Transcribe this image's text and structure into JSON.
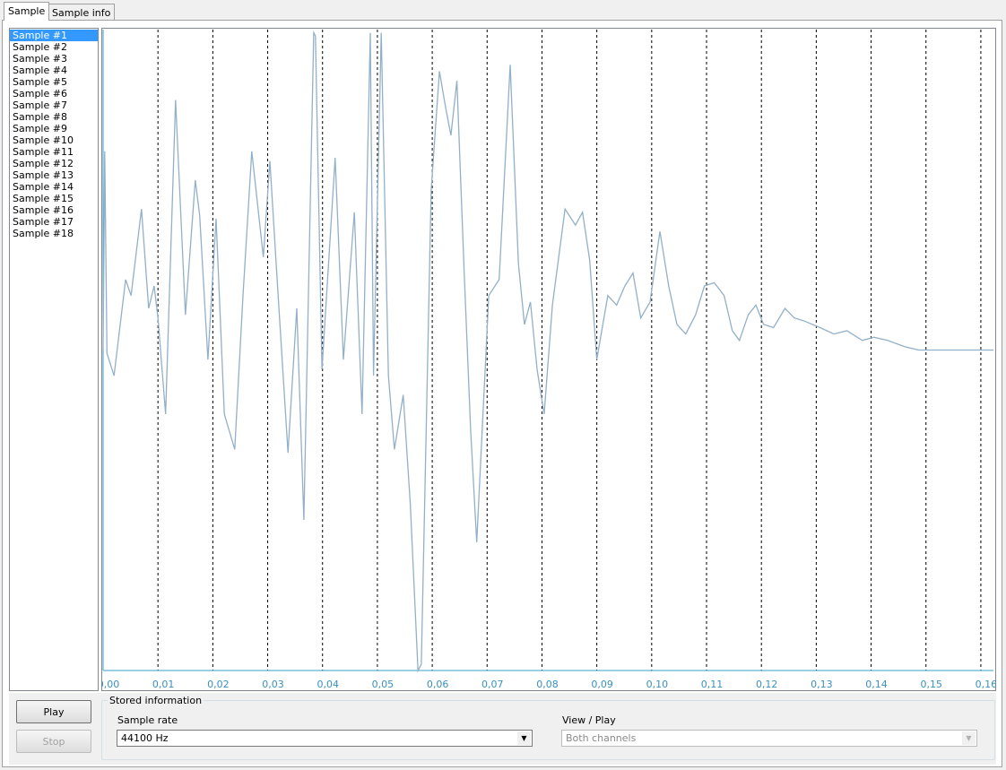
{
  "tabs": [
    "Sample",
    "Sample info"
  ],
  "samples": [
    "Sample #1",
    "Sample #2",
    "Sample #3",
    "Sample #4",
    "Sample #5",
    "Sample #6",
    "Sample #7",
    "Sample #8",
    "Sample #9",
    "Sample #10",
    "Sample #11",
    "Sample #12",
    "Sample #13",
    "Sample #14",
    "Sample #15",
    "Sample #16",
    "Sample #17",
    "Sample #18"
  ],
  "chart_data": {
    "type": "line",
    "color": "#92b0c8",
    "x": [
      0,
      0.0003,
      0.0007,
      0.002,
      0.0041,
      0.0051,
      0.007,
      0.0083,
      0.0093,
      0.01,
      0.0114,
      0.0132,
      0.015,
      0.0168,
      0.0176,
      0.0191,
      0.0206,
      0.0221,
      0.024,
      0.0255,
      0.0271,
      0.0292,
      0.0304,
      0.0319,
      0.0337,
      0.0353,
      0.0366,
      0.0384,
      0.0387,
      0.0399,
      0.0423,
      0.0438,
      0.0458,
      0.0472,
      0.0487,
      0.0493,
      0.0507,
      0.052,
      0.0531,
      0.0547,
      0.056,
      0.0574,
      0.058,
      0.0598,
      0.0613,
      0.0624,
      0.0634,
      0.0645,
      0.0658,
      0.067,
      0.0681,
      0.0703,
      0.0722,
      0.0742,
      0.0757,
      0.0768,
      0.0779,
      0.0791,
      0.0804,
      0.0819,
      0.0842,
      0.0861,
      0.0874,
      0.0887,
      0.09,
      0.092,
      0.0936,
      0.0951,
      0.0966,
      0.098,
      0.0997,
      0.1015,
      0.1031,
      0.1046,
      0.1062,
      0.108,
      0.1096,
      0.1114,
      0.1132,
      0.1147,
      0.116,
      0.1176,
      0.119,
      0.1204,
      0.1222,
      0.1243,
      0.126,
      0.1279,
      0.1307,
      0.1332,
      0.1356,
      0.1384,
      0.1405,
      0.143,
      0.1462,
      0.1487,
      0.1623
    ],
    "values": [
      0,
      0.62,
      -0.01,
      -0.08,
      0.22,
      0.17,
      0.44,
      0.13,
      0.2,
      0.1,
      -0.2,
      0.78,
      0.11,
      0.53,
      0.42,
      -0.03,
      0.41,
      -0.2,
      -0.31,
      0.17,
      0.62,
      0.29,
      0.59,
      0.17,
      -0.32,
      0.13,
      -0.53,
      0.99,
      0.98,
      -0.06,
      0.6,
      -0.03,
      0.43,
      -0.2,
      0.99,
      -0.08,
      0.99,
      -0.08,
      -0.31,
      -0.14,
      -0.48,
      -1.0,
      -0.98,
      0.5,
      0.87,
      0.76,
      0.67,
      0.84,
      0.25,
      -0.25,
      -0.6,
      0.17,
      0.22,
      0.89,
      0.27,
      0.08,
      0.15,
      -0.06,
      -0.2,
      0.14,
      0.44,
      0.39,
      0.43,
      0.28,
      -0.03,
      0.17,
      0.14,
      0.2,
      0.24,
      0.1,
      0.15,
      0.37,
      0.2,
      0.08,
      0.05,
      0.11,
      0.2,
      0.21,
      0.17,
      0.06,
      0.03,
      0.11,
      0.14,
      0.08,
      0.07,
      0.13,
      0.1,
      0.09,
      0.07,
      0.05,
      0.06,
      0.03,
      0.04,
      0.03,
      0.01,
      0,
      0
    ],
    "xlim": [
      0,
      0.1623
    ],
    "ylim": [
      -1,
      1
    ],
    "xticks": [
      {
        "value": 0,
        "label": "0,00"
      },
      {
        "value": 0.01,
        "label": "0,01"
      },
      {
        "value": 0.02,
        "label": "0,02"
      },
      {
        "value": 0.03,
        "label": "0,03"
      },
      {
        "value": 0.04,
        "label": "0,04"
      },
      {
        "value": 0.05,
        "label": "0,05"
      },
      {
        "value": 0.06,
        "label": "0,06"
      },
      {
        "value": 0.07,
        "label": "0,07"
      },
      {
        "value": 0.08,
        "label": "0,08"
      },
      {
        "value": 0.09,
        "label": "0,09"
      },
      {
        "value": 0.1,
        "label": "0,10"
      },
      {
        "value": 0.11,
        "label": "0,11"
      },
      {
        "value": 0.12,
        "label": "0,12"
      },
      {
        "value": 0.13,
        "label": "0,13"
      },
      {
        "value": 0.14,
        "label": "0,14"
      },
      {
        "value": 0.15,
        "label": "0,15"
      },
      {
        "value": 0.16,
        "label": "0,16"
      }
    ],
    "grid": true
  },
  "buttons": {
    "play": "Play",
    "stop": "Stop"
  },
  "stored_information": {
    "title": "Stored information",
    "sample_rate_label": "Sample rate",
    "sample_rate": "44100 Hz",
    "view_play_label": "View / Play",
    "view_play": "Both channels"
  }
}
